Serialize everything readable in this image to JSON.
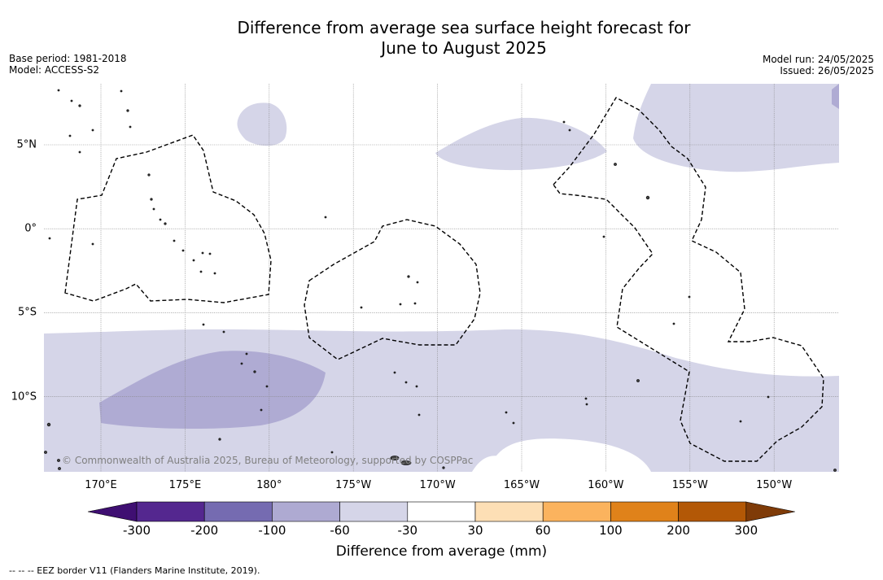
{
  "title_line1": "Difference from average sea surface height forecast for",
  "title_line2": "June to August 2025",
  "base_period": "Base period: 1981-2018",
  "model": "Model: ACCESS-S2",
  "model_run": "Model run: 24/05/2025",
  "issued": "Issued: 26/05/2025",
  "credit": "© Commonwealth of Australia 2025, Bureau of Meteorology, supported by COSPPac",
  "footnote": "--  --  -- EEZ border V11 (Flanders Marine Institute, 2019).",
  "lon_labels": [
    "170°E",
    "175°E",
    "180°",
    "175°W",
    "170°W",
    "165°W",
    "160°W",
    "155°W",
    "150°W"
  ],
  "lat_labels": [
    "5°N",
    "0°",
    "5°S",
    "10°S"
  ],
  "colorbar": {
    "title": "Difference from average (mm)",
    "ticks": [
      "-300",
      "-200",
      "-100",
      "-60",
      "-30",
      "30",
      "60",
      "100",
      "200",
      "300"
    ],
    "colors": [
      "#3f0f72",
      "#54278f",
      "#756bb1",
      "#aeaad2",
      "#d5d5e8",
      "#ffffff",
      "#fddfb5",
      "#fbb35e",
      "#e0821a",
      "#b35806",
      "#7f3b08"
    ]
  },
  "fill_colors": {
    "light_purple": "#d5d5e8",
    "medium_purple": "#afabd3",
    "land": "#444444"
  }
}
